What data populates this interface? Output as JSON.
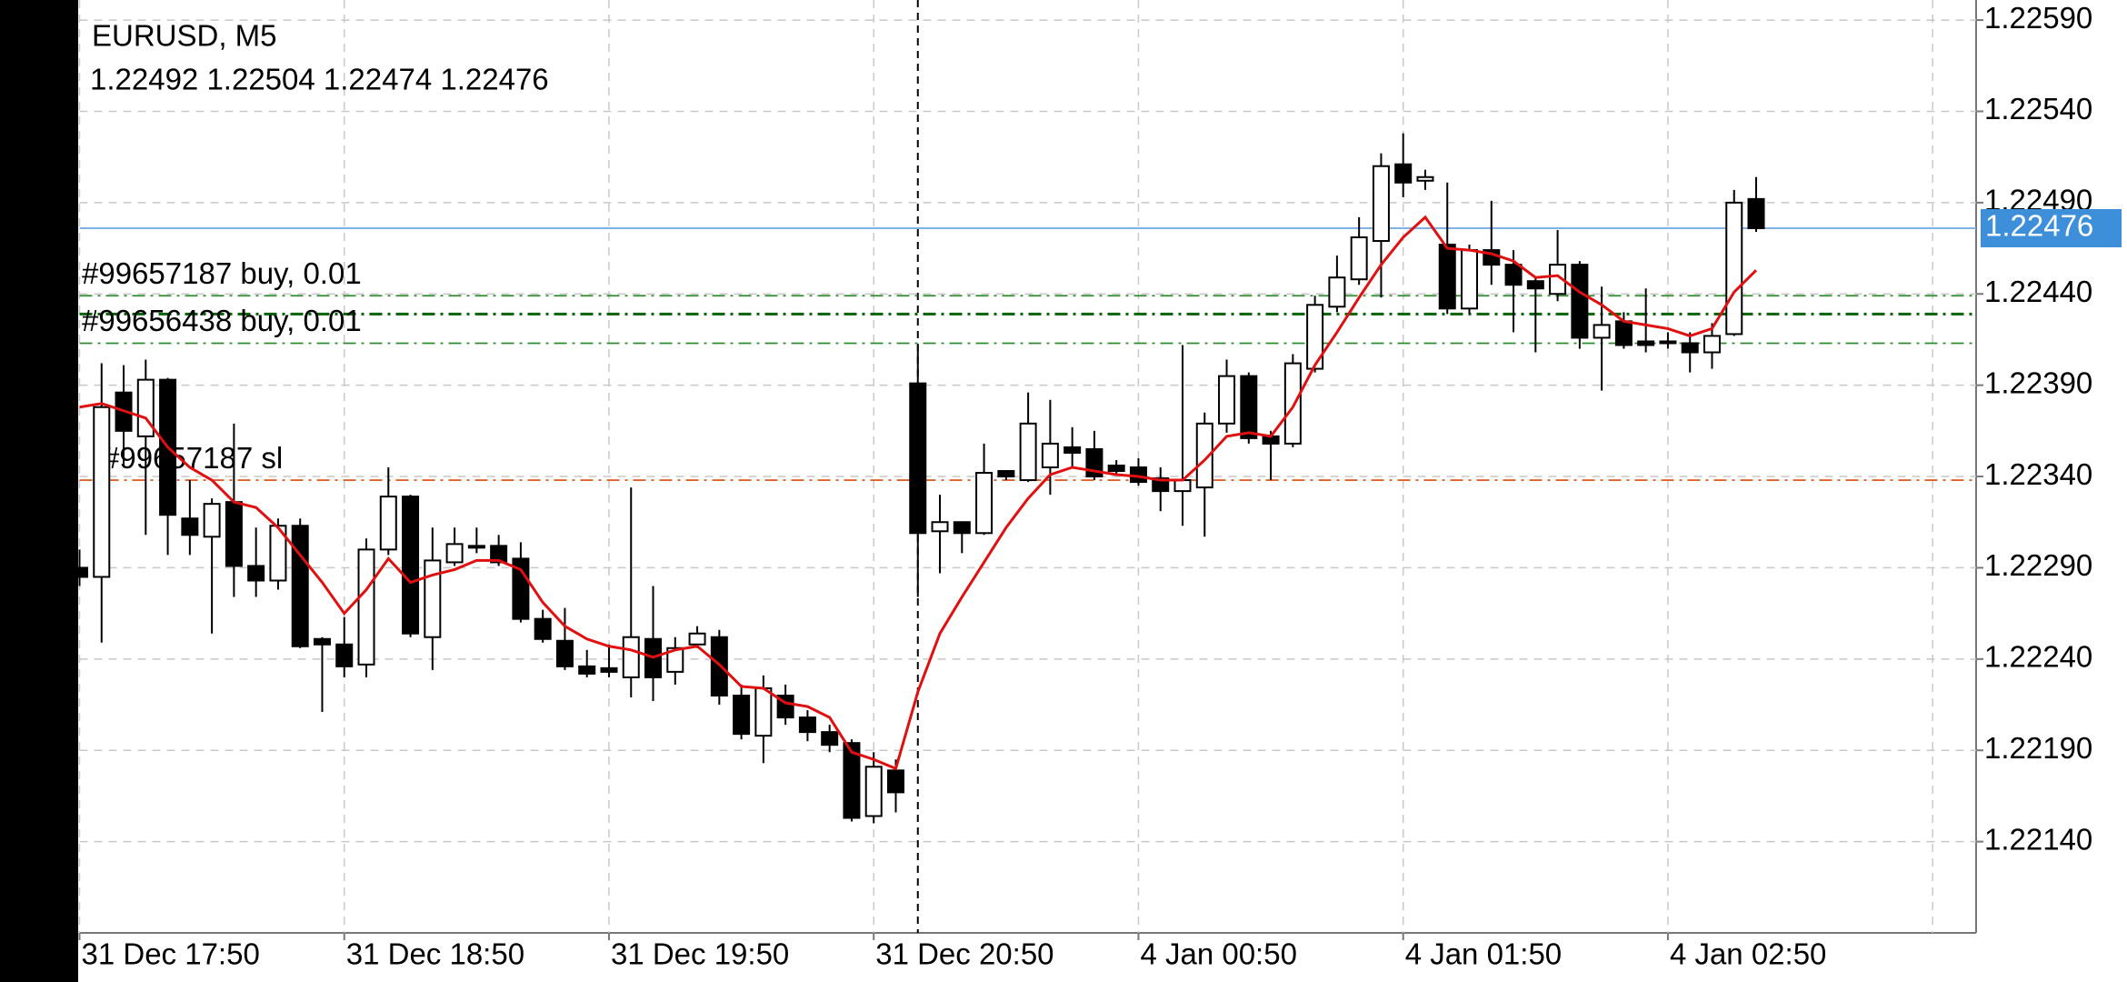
{
  "chart_data": {
    "type": "candlestick",
    "title": "EURUSD, M5",
    "subtitle": "1.22492 1.22504 1.22474 1.22476",
    "categories": [
      "31 Dec 17:50",
      null,
      null,
      null,
      null,
      null,
      null,
      null,
      null,
      null,
      null,
      null,
      "31 Dec 18:50",
      null,
      null,
      null,
      null,
      null,
      null,
      null,
      null,
      null,
      null,
      null,
      "31 Dec 19:50",
      null,
      null,
      null,
      null,
      null,
      null,
      null,
      null,
      null,
      null,
      null,
      "31 Dec 20:50",
      null,
      null,
      null,
      null,
      null,
      null,
      null,
      null,
      null,
      null,
      null,
      "4 Jan 00:50",
      null,
      null,
      null,
      null,
      null,
      null,
      null,
      null,
      null,
      null,
      null,
      "4 Jan 01:50",
      null,
      null,
      null,
      null,
      null,
      null,
      null,
      null,
      null,
      null,
      null,
      "4 Jan 02:50",
      null,
      null,
      null,
      null
    ],
    "open": [
      1.2229,
      1.22285,
      1.22386,
      1.22362,
      1.22393,
      1.22317,
      1.22307,
      1.22326,
      1.22291,
      1.22283,
      1.22313,
      1.22251,
      1.22248,
      1.22237,
      1.223,
      1.22329,
      1.22252,
      1.22293,
      1.22301,
      1.22302,
      1.22295,
      1.22262,
      1.2225,
      1.22236,
      1.22235,
      1.2223,
      1.22251,
      1.22233,
      1.22248,
      1.22252,
      1.2222,
      1.22198,
      1.2222,
      1.22208,
      1.222,
      1.22194,
      1.22154,
      1.22179,
      1.22391,
      1.2231,
      1.22315,
      1.22309,
      1.22343,
      1.22338,
      1.22345,
      1.22356,
      1.22355,
      1.22346,
      1.22345,
      1.22339,
      1.22332,
      1.22334,
      1.22369,
      1.22395,
      1.22362,
      1.22358,
      1.22399,
      1.22433,
      1.22448,
      1.22469,
      1.22511,
      1.22502,
      1.22467,
      1.22432,
      1.22464,
      1.22456,
      1.22447,
      1.2244,
      1.22456,
      1.22416,
      1.22425,
      1.22414,
      1.22414,
      1.22413,
      1.22408,
      1.22418,
      1.22492
    ],
    "high": [
      1.223,
      1.22402,
      1.22401,
      1.22404,
      1.22394,
      1.22338,
      1.22328,
      1.22369,
      1.22312,
      1.22317,
      1.22317,
      1.22252,
      1.22263,
      1.22306,
      1.22345,
      1.2233,
      1.22312,
      1.22312,
      1.22312,
      1.22308,
      1.22304,
      1.22267,
      1.22268,
      1.22245,
      1.22248,
      1.22334,
      1.2228,
      1.22252,
      1.22258,
      1.22256,
      1.22226,
      1.22231,
      1.22226,
      1.22212,
      1.22204,
      1.22196,
      1.22189,
      1.22185,
      1.22412,
      1.2233,
      1.22315,
      1.22358,
      1.22343,
      1.22386,
      1.22382,
      1.22367,
      1.22365,
      1.22349,
      1.2235,
      1.22345,
      1.22412,
      1.22375,
      1.22404,
      1.22397,
      1.22365,
      1.22407,
      1.22439,
      1.22461,
      1.22482,
      1.22517,
      1.22528,
      1.22508,
      1.22501,
      1.22467,
      1.22491,
      1.22464,
      1.22449,
      1.22475,
      1.22458,
      1.22444,
      1.2243,
      1.22443,
      1.22419,
      1.22419,
      1.22424,
      1.22497,
      1.22504
    ],
    "low": [
      1.2228,
      1.22249,
      1.22345,
      1.22308,
      1.22297,
      1.22297,
      1.22254,
      1.22274,
      1.22274,
      1.22278,
      1.22246,
      1.22211,
      1.2223,
      1.2223,
      1.22297,
      1.22252,
      1.22234,
      1.22291,
      1.22298,
      1.22291,
      1.2226,
      1.22249,
      1.22234,
      1.2223,
      1.2223,
      1.22219,
      1.22217,
      1.22226,
      1.22246,
      1.22215,
      1.22196,
      1.22183,
      1.22204,
      1.22195,
      1.22189,
      1.22151,
      1.2215,
      1.22156,
      1.22274,
      1.22287,
      1.22298,
      1.22308,
      1.22338,
      1.22337,
      1.2233,
      1.22345,
      1.22338,
      1.22341,
      1.22335,
      1.22321,
      1.22313,
      1.22307,
      1.22364,
      1.22358,
      1.22338,
      1.22356,
      1.22397,
      1.2243,
      1.22445,
      1.22438,
      1.22493,
      1.22497,
      1.22429,
      1.22429,
      1.22445,
      1.22419,
      1.22408,
      1.22436,
      1.2241,
      1.22387,
      1.2241,
      1.22408,
      1.2241,
      1.22397,
      1.22399,
      1.22417,
      1.22474
    ],
    "close": [
      1.22285,
      1.22378,
      1.22365,
      1.22393,
      1.22319,
      1.22308,
      1.22325,
      1.22291,
      1.22283,
      1.22313,
      1.22247,
      1.22248,
      1.22236,
      1.223,
      1.22329,
      1.22254,
      1.22294,
      1.22303,
      1.22302,
      1.22293,
      1.22262,
      1.22251,
      1.22236,
      1.22232,
      1.22233,
      1.22252,
      1.2223,
      1.22246,
      1.22254,
      1.2222,
      1.22199,
      1.22224,
      1.22208,
      1.222,
      1.22193,
      1.22153,
      1.22181,
      1.22167,
      1.22309,
      1.22315,
      1.22309,
      1.22342,
      1.2234,
      1.22369,
      1.22358,
      1.22353,
      1.2234,
      1.22343,
      1.22337,
      1.22332,
      1.22338,
      1.22369,
      1.22395,
      1.22361,
      1.22358,
      1.22402,
      1.22434,
      1.22449,
      1.22471,
      1.2251,
      1.22501,
      1.22504,
      1.22432,
      1.22464,
      1.22456,
      1.22445,
      1.22443,
      1.22456,
      1.22416,
      1.22423,
      1.22412,
      1.22412,
      1.22413,
      1.22408,
      1.22417,
      1.2249,
      1.22476
    ],
    "bull_color": "#ffffff",
    "bear_color": "#000000",
    "ma": {
      "color": "#e01010",
      "values": [
        1.22378,
        1.2238,
        1.22376,
        1.22372,
        1.22356,
        1.22345,
        1.22338,
        1.22326,
        1.22323,
        1.22312,
        1.22297,
        1.22282,
        1.22265,
        1.22278,
        1.22295,
        1.22282,
        1.22286,
        1.22289,
        1.22294,
        1.22294,
        1.22289,
        1.22271,
        1.22258,
        1.22251,
        1.22247,
        1.22245,
        1.22241,
        1.22245,
        1.22247,
        1.22237,
        1.22225,
        1.22224,
        1.22216,
        1.22214,
        1.22208,
        1.22189,
        1.22185,
        1.2218,
        1.22222,
        1.22254,
        1.22274,
        1.22293,
        1.22312,
        1.22328,
        1.22341,
        1.22345,
        1.22343,
        1.22341,
        1.2234,
        1.22338,
        1.22338,
        1.22349,
        1.22362,
        1.22364,
        1.22362,
        1.22378,
        1.22401,
        1.22419,
        1.22438,
        1.22456,
        1.22471,
        1.22482,
        1.22465,
        1.22464,
        1.22462,
        1.22458,
        1.22449,
        1.2245,
        1.22441,
        1.22434,
        1.22425,
        1.22423,
        1.22421,
        1.22417,
        1.22421,
        1.22441,
        1.22453
      ]
    },
    "ylim": [
      1.2209,
      1.22601
    ],
    "yticks": [
      {
        "value": 1.2259,
        "label": "1.22590"
      },
      {
        "value": 1.2254,
        "label": "1.22540"
      },
      {
        "value": 1.2249,
        "label": "1.22490"
      },
      {
        "value": 1.2244,
        "label": "1.22440"
      },
      {
        "value": 1.2239,
        "label": "1.22390"
      },
      {
        "value": 1.2234,
        "label": "1.22340"
      },
      {
        "value": 1.2229,
        "label": "1.22290"
      },
      {
        "value": 1.2224,
        "label": "1.22240"
      },
      {
        "value": 1.2219,
        "label": "1.22190"
      },
      {
        "value": 1.2214,
        "label": "1.22140"
      }
    ],
    "grid": true,
    "bid": {
      "value": 1.22476,
      "color": "#3c8fd8"
    },
    "levels": [
      {
        "label": "#99657187 buy, 0.01",
        "value": 1.22439,
        "color": "#2e8b2e"
      },
      {
        "value": 1.22429,
        "color": "#006400"
      },
      {
        "label": "#99656438 buy, 0.01",
        "value": 1.22413,
        "color": "#2e8b2e"
      },
      {
        "label": "#99657187 sl",
        "value": 1.22338,
        "color": "#e0622a"
      }
    ]
  }
}
